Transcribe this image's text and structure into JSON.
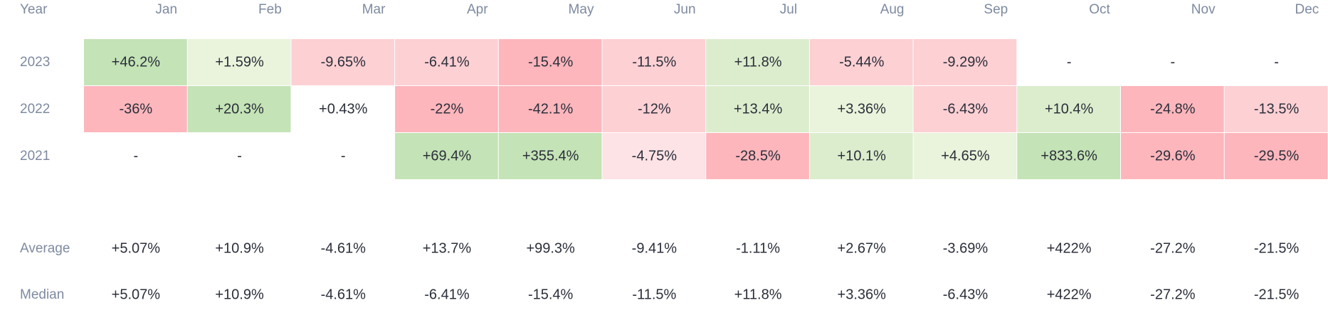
{
  "chart_data": {
    "type": "heatmap",
    "header": {
      "year_label": "Year",
      "months": [
        "Jan",
        "Feb",
        "Mar",
        "Apr",
        "May",
        "Jun",
        "Jul",
        "Aug",
        "Sep",
        "Oct",
        "Nov",
        "Dec"
      ]
    },
    "rows": [
      {
        "year": "2023",
        "values": [
          "+46.2%",
          "+1.59%",
          "-9.65%",
          "-6.41%",
          "-15.4%",
          "-11.5%",
          "+11.8%",
          "-5.44%",
          "-9.29%",
          "-",
          "-",
          "-"
        ]
      },
      {
        "year": "2022",
        "values": [
          "-36%",
          "+20.3%",
          "+0.43%",
          "-22%",
          "-42.1%",
          "-12%",
          "+13.4%",
          "+3.36%",
          "-6.43%",
          "+10.4%",
          "-24.8%",
          "-13.5%"
        ]
      },
      {
        "year": "2021",
        "values": [
          "-",
          "-",
          "-",
          "+69.4%",
          "+355.4%",
          "-4.75%",
          "-28.5%",
          "+10.1%",
          "+4.65%",
          "+833.6%",
          "-29.6%",
          "-29.5%"
        ]
      }
    ],
    "summary": [
      {
        "label": "Average",
        "values": [
          "+5.07%",
          "+10.9%",
          "-4.61%",
          "+13.7%",
          "+99.3%",
          "-9.41%",
          "-1.11%",
          "+2.67%",
          "-3.69%",
          "+422%",
          "-27.2%",
          "-21.5%"
        ]
      },
      {
        "label": "Median",
        "values": [
          "+5.07%",
          "+10.9%",
          "-4.61%",
          "-6.41%",
          "-15.4%",
          "-11.5%",
          "+11.8%",
          "+3.36%",
          "-6.43%",
          "+422%",
          "-27.2%",
          "-21.5%"
        ]
      }
    ],
    "cell_colors": [
      [
        "#c4e3b6",
        "#eaf3db",
        "#fdd0d4",
        "#fdd0d4",
        "#fdb6bc",
        "#fdd0d4",
        "#dcedcd",
        "#fdd0d4",
        "#fdd0d4",
        "",
        "",
        ""
      ],
      [
        "#fdb6bc",
        "#c4e3b6",
        "",
        "#fdb6bc",
        "#fdb6bc",
        "#fdd0d4",
        "#dcedcd",
        "#eaf3db",
        "#fdd0d4",
        "#dcedcd",
        "#fdb6bc",
        "#fdd0d4"
      ],
      [
        "",
        "",
        "",
        "#c4e3b6",
        "#c4e3b6",
        "#fde3e6",
        "#fdb6bc",
        "#dcedcd",
        "#eaf3db",
        "#c4e3b6",
        "#fdb6bc",
        "#fdb6bc"
      ]
    ],
    "text_color": "#2b2f3a",
    "label_color": "#7e8aa0"
  }
}
